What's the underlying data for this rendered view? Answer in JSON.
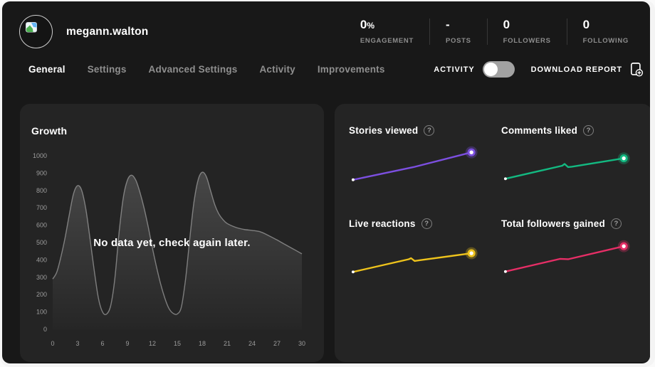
{
  "header": {
    "username": "megann.walton",
    "stats": [
      {
        "value": "0",
        "suffix": "%",
        "label": "ENGAGEMENT"
      },
      {
        "value": "-",
        "suffix": "",
        "label": "POSTS"
      },
      {
        "value": "0",
        "suffix": "",
        "label": "FOLLOWERS"
      },
      {
        "value": "0",
        "suffix": "",
        "label": "FOLLOWING"
      }
    ]
  },
  "nav": {
    "tabs": [
      {
        "label": "General",
        "active": true
      },
      {
        "label": "Settings",
        "active": false
      },
      {
        "label": "Advanced Settings",
        "active": false
      },
      {
        "label": "Activity",
        "active": false
      },
      {
        "label": "Improvements",
        "active": false
      }
    ],
    "activity_toggle": {
      "label": "ACTIVITY",
      "state": "off"
    },
    "download_report": {
      "label": "DOWNLOAD REPORT"
    }
  },
  "icons": {
    "help_glyph": "?"
  },
  "colors": {
    "panel": "#242424",
    "background": "#181818",
    "purple": "#7c4fe0",
    "green": "#13b981",
    "yellow": "#eec31c",
    "red": "#e62e66"
  },
  "chart_data": [
    {
      "type": "area",
      "title": "Growth",
      "empty_message": "No data yet, check again later.",
      "x_ticks": [
        "0",
        "3",
        "6",
        "9",
        "12",
        "15",
        "18",
        "21",
        "24",
        "27",
        "30"
      ],
      "y_ticks": [
        "0",
        "100",
        "200",
        "300",
        "400",
        "500",
        "600",
        "700",
        "800",
        "900",
        "1000"
      ],
      "xlim": [
        0,
        30
      ],
      "ylim": [
        0,
        1000
      ],
      "grid": false,
      "line_color": "#a3a3a3",
      "points": [
        [
          0,
          290
        ],
        [
          0.5,
          330
        ],
        [
          1,
          420
        ],
        [
          1.5,
          530
        ],
        [
          2,
          660
        ],
        [
          2.5,
          780
        ],
        [
          3,
          828
        ],
        [
          3.5,
          800
        ],
        [
          4,
          690
        ],
        [
          4.5,
          520
        ],
        [
          5,
          340
        ],
        [
          5.5,
          180
        ],
        [
          6,
          100
        ],
        [
          6.5,
          88
        ],
        [
          7,
          140
        ],
        [
          7.5,
          300
        ],
        [
          8,
          560
        ],
        [
          8.5,
          760
        ],
        [
          9,
          860
        ],
        [
          9.5,
          888
        ],
        [
          10,
          860
        ],
        [
          10.5,
          790
        ],
        [
          11,
          700
        ],
        [
          11.5,
          590
        ],
        [
          12,
          470
        ],
        [
          12.5,
          360
        ],
        [
          13,
          260
        ],
        [
          13.5,
          180
        ],
        [
          14,
          120
        ],
        [
          14.5,
          92
        ],
        [
          15,
          88
        ],
        [
          15.5,
          130
        ],
        [
          16,
          290
        ],
        [
          16.5,
          520
        ],
        [
          17,
          730
        ],
        [
          17.5,
          860
        ],
        [
          18,
          905
        ],
        [
          18.5,
          880
        ],
        [
          19,
          800
        ],
        [
          19.5,
          720
        ],
        [
          20,
          665
        ],
        [
          20.5,
          632
        ],
        [
          21,
          610
        ],
        [
          22,
          588
        ],
        [
          23,
          576
        ],
        [
          24,
          570
        ],
        [
          25,
          562
        ],
        [
          26,
          540
        ],
        [
          27,
          515
        ],
        [
          28,
          488
        ],
        [
          29,
          462
        ],
        [
          30,
          435
        ]
      ]
    },
    {
      "type": "line",
      "title": "Stories viewed",
      "color": "#7c4fe0",
      "points": [
        [
          0,
          8
        ],
        [
          51,
          44
        ],
        [
          100,
          86
        ]
      ]
    },
    {
      "type": "line",
      "title": "Comments liked",
      "color": "#13b981",
      "points": [
        [
          0,
          11
        ],
        [
          48,
          48
        ],
        [
          50,
          53
        ],
        [
          53,
          44
        ],
        [
          56,
          45
        ],
        [
          100,
          69
        ]
      ]
    },
    {
      "type": "line",
      "title": "Live reactions",
      "color": "#eec31c",
      "points": [
        [
          0,
          11
        ],
        [
          47,
          47
        ],
        [
          49,
          50
        ],
        [
          52,
          42
        ],
        [
          56,
          44
        ],
        [
          100,
          64
        ]
      ]
    },
    {
      "type": "line",
      "title": "Total followers gained",
      "color": "#e62e66",
      "points": [
        [
          0,
          12
        ],
        [
          46,
          48
        ],
        [
          53,
          47
        ],
        [
          100,
          84
        ]
      ]
    }
  ]
}
